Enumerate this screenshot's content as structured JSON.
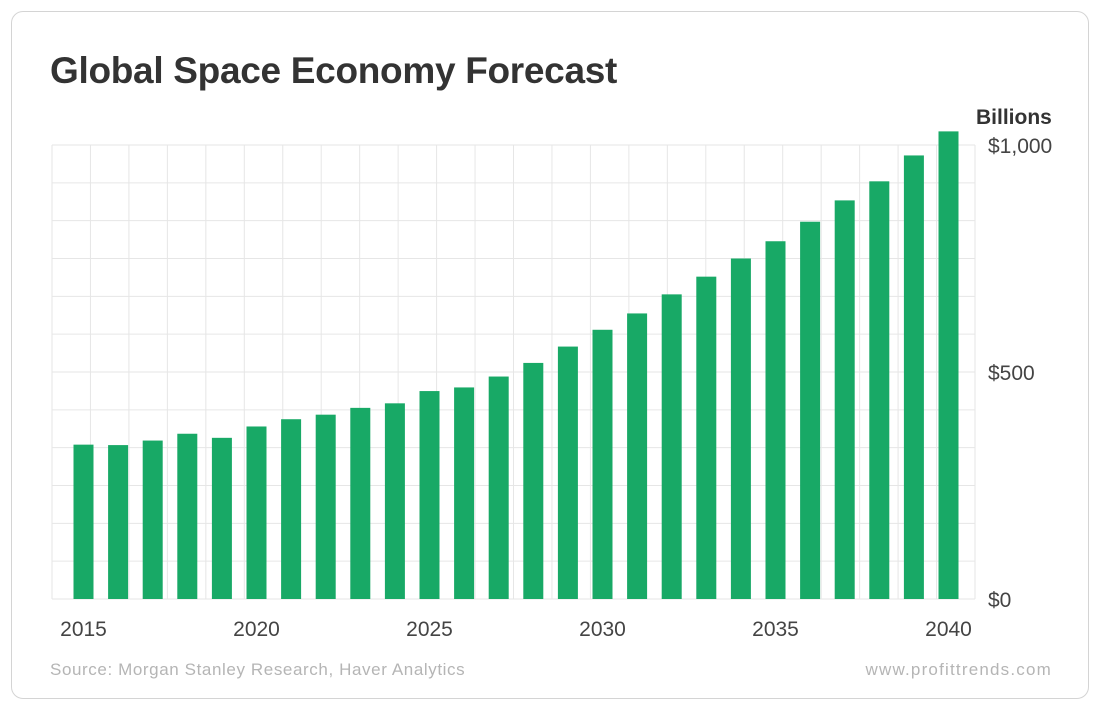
{
  "chart_data": {
    "type": "bar",
    "title": "Global Space Economy Forecast",
    "unit_label": "Billions",
    "categories": [
      2015,
      2016,
      2017,
      2018,
      2019,
      2020,
      2021,
      2022,
      2023,
      2024,
      2025,
      2026,
      2027,
      2028,
      2029,
      2030,
      2031,
      2032,
      2033,
      2034,
      2035,
      2036,
      2037,
      2038,
      2039,
      2040
    ],
    "values": [
      340,
      339,
      349,
      364,
      355,
      380,
      396,
      406,
      421,
      431,
      458,
      466,
      490,
      520,
      556,
      593,
      629,
      671,
      710,
      750,
      788,
      831,
      878,
      920,
      977,
      1030
    ],
    "x_tick_labels": [
      "2015",
      "2020",
      "2025",
      "2030",
      "2035",
      "2040"
    ],
    "y_tick_labels": [
      "$0",
      "$500",
      "$1,000"
    ],
    "y_ticks": [
      0,
      500,
      1000
    ],
    "ylim": [
      0,
      1000
    ],
    "y_axis_side": "right",
    "grid": true,
    "bar_color": "#18a966",
    "grid_color": "#e6e6e6"
  },
  "footer": {
    "source": "Source: Morgan Stanley Research, Haver Analytics",
    "website": "www.profittrends.com"
  }
}
